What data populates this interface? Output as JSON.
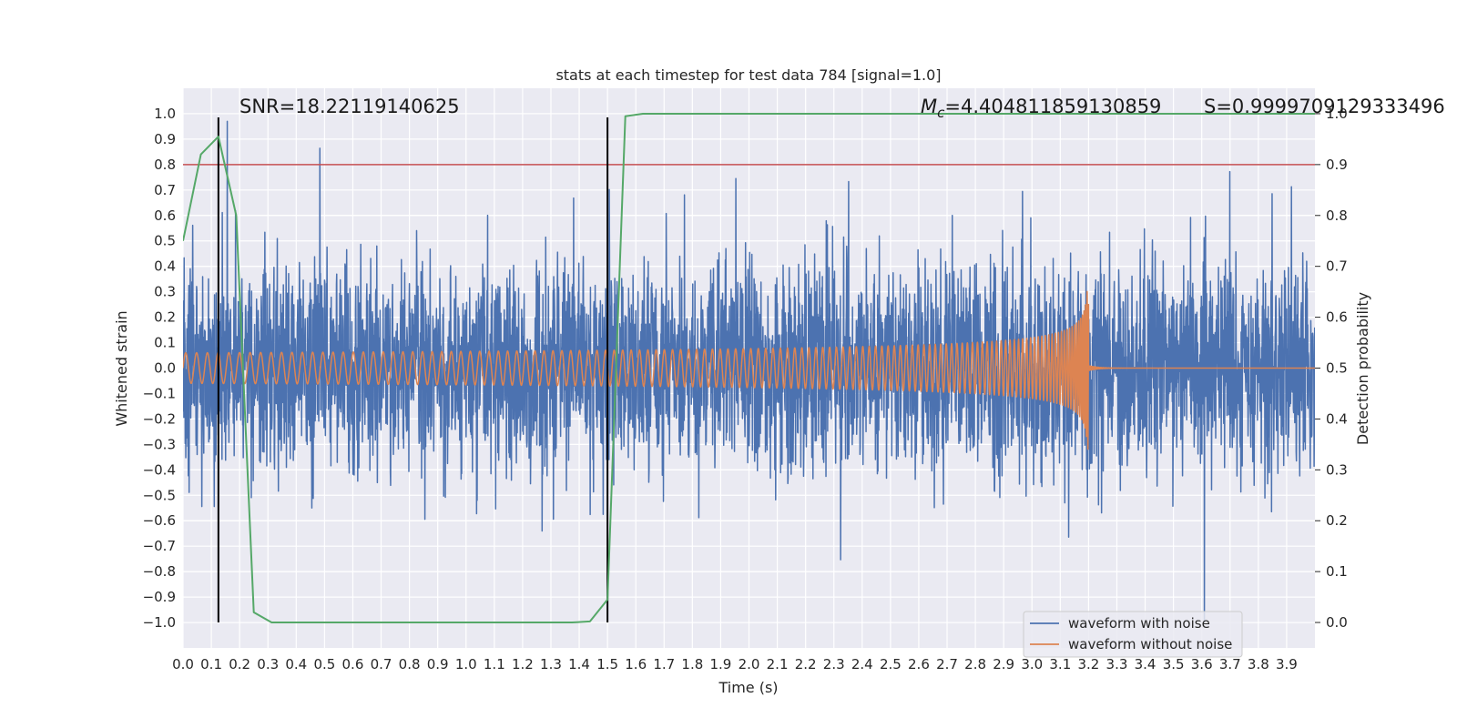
{
  "chart_data": {
    "type": "line",
    "title": "stats at each timestep for test data 784 [signal=1.0]",
    "xlabel": "Time (s)",
    "ylabel": "Whitened strain",
    "y2label": "Detection probability",
    "xlim": [
      0.0,
      4.0
    ],
    "ylim": [
      -1.1,
      1.1
    ],
    "y2lim": [
      -0.05,
      1.05
    ],
    "x_ticks": [
      "0.0",
      "0.1",
      "0.2",
      "0.3",
      "0.4",
      "0.5",
      "0.6",
      "0.7",
      "0.8",
      "0.9",
      "1.0",
      "1.1",
      "1.2",
      "1.3",
      "1.4",
      "1.5",
      "1.6",
      "1.7",
      "1.8",
      "1.9",
      "2.0",
      "2.1",
      "2.2",
      "2.3",
      "2.4",
      "2.5",
      "2.6",
      "2.7",
      "2.8",
      "2.9",
      "3.0",
      "3.1",
      "3.2",
      "3.3",
      "3.4",
      "3.5",
      "3.6",
      "3.7",
      "3.8",
      "3.9"
    ],
    "y_ticks": [
      "1.0",
      "0.9",
      "0.8",
      "0.7",
      "0.6",
      "0.5",
      "0.4",
      "0.3",
      "0.2",
      "0.1",
      "0.0",
      "−0.1",
      "−0.2",
      "−0.3",
      "−0.4",
      "−0.5",
      "−0.6",
      "−0.7",
      "−0.8",
      "−0.9",
      "−1.0"
    ],
    "y2_ticks": [
      "1.0",
      "0.9",
      "0.8",
      "0.7",
      "0.6",
      "0.5",
      "0.4",
      "0.3",
      "0.2",
      "0.1",
      "0.0"
    ],
    "annotations": {
      "snr": "SNR=18.22119140625",
      "mc_symbol": "M",
      "mc_sub": "c",
      "mc_value": "=4.404811859130859",
      "s": "S=0.9999709129333496"
    },
    "threshold_probability": 0.9,
    "vertical_markers_s": [
      0.125,
      1.5
    ],
    "series": [
      {
        "name": "waveform with noise",
        "color": "#4c72b0",
        "axis": "left",
        "description": "noisy whitened strain, roughly within ±0.6 with spikes to ±1.0"
      },
      {
        "name": "waveform without noise",
        "color": "#dd8452",
        "axis": "left",
        "chirp_start_s": 0.0,
        "chirp_end_s": 3.2,
        "start_amplitude": 0.06,
        "peak_amplitude": 0.45,
        "start_freq_hz": 26,
        "end_freq_hz": 180
      },
      {
        "name": "detection probability",
        "color": "#55a868",
        "axis": "right",
        "x": [
          0.0,
          0.063,
          0.125,
          0.188,
          0.25,
          0.313,
          0.375,
          0.438,
          0.5,
          0.563,
          0.625,
          0.688,
          0.75,
          0.813,
          0.875,
          0.938,
          1.0,
          1.063,
          1.125,
          1.188,
          1.25,
          1.313,
          1.375,
          1.438,
          1.5,
          1.563,
          1.625,
          1.688,
          1.75,
          2.0,
          2.5,
          3.0,
          3.5,
          4.0
        ],
        "y": [
          0.75,
          0.92,
          0.955,
          0.8,
          0.02,
          0.0,
          0.0,
          0.0,
          0.0,
          0.0,
          0.0,
          0.0,
          0.0,
          0.0,
          0.0,
          0.0,
          0.0,
          0.0,
          0.0,
          0.0,
          0.0,
          0.0,
          0.0,
          0.002,
          0.045,
          0.995,
          1.0,
          1.0,
          1.0,
          1.0,
          1.0,
          1.0,
          1.0,
          1.0
        ]
      }
    ],
    "legend": {
      "placement": "lower-right",
      "entries": [
        "waveform with noise",
        "waveform without noise"
      ]
    },
    "colors": {
      "background": "#eaeaf2",
      "grid": "#ffffff",
      "threshold": "#c44e52",
      "marker": "#000000"
    }
  }
}
